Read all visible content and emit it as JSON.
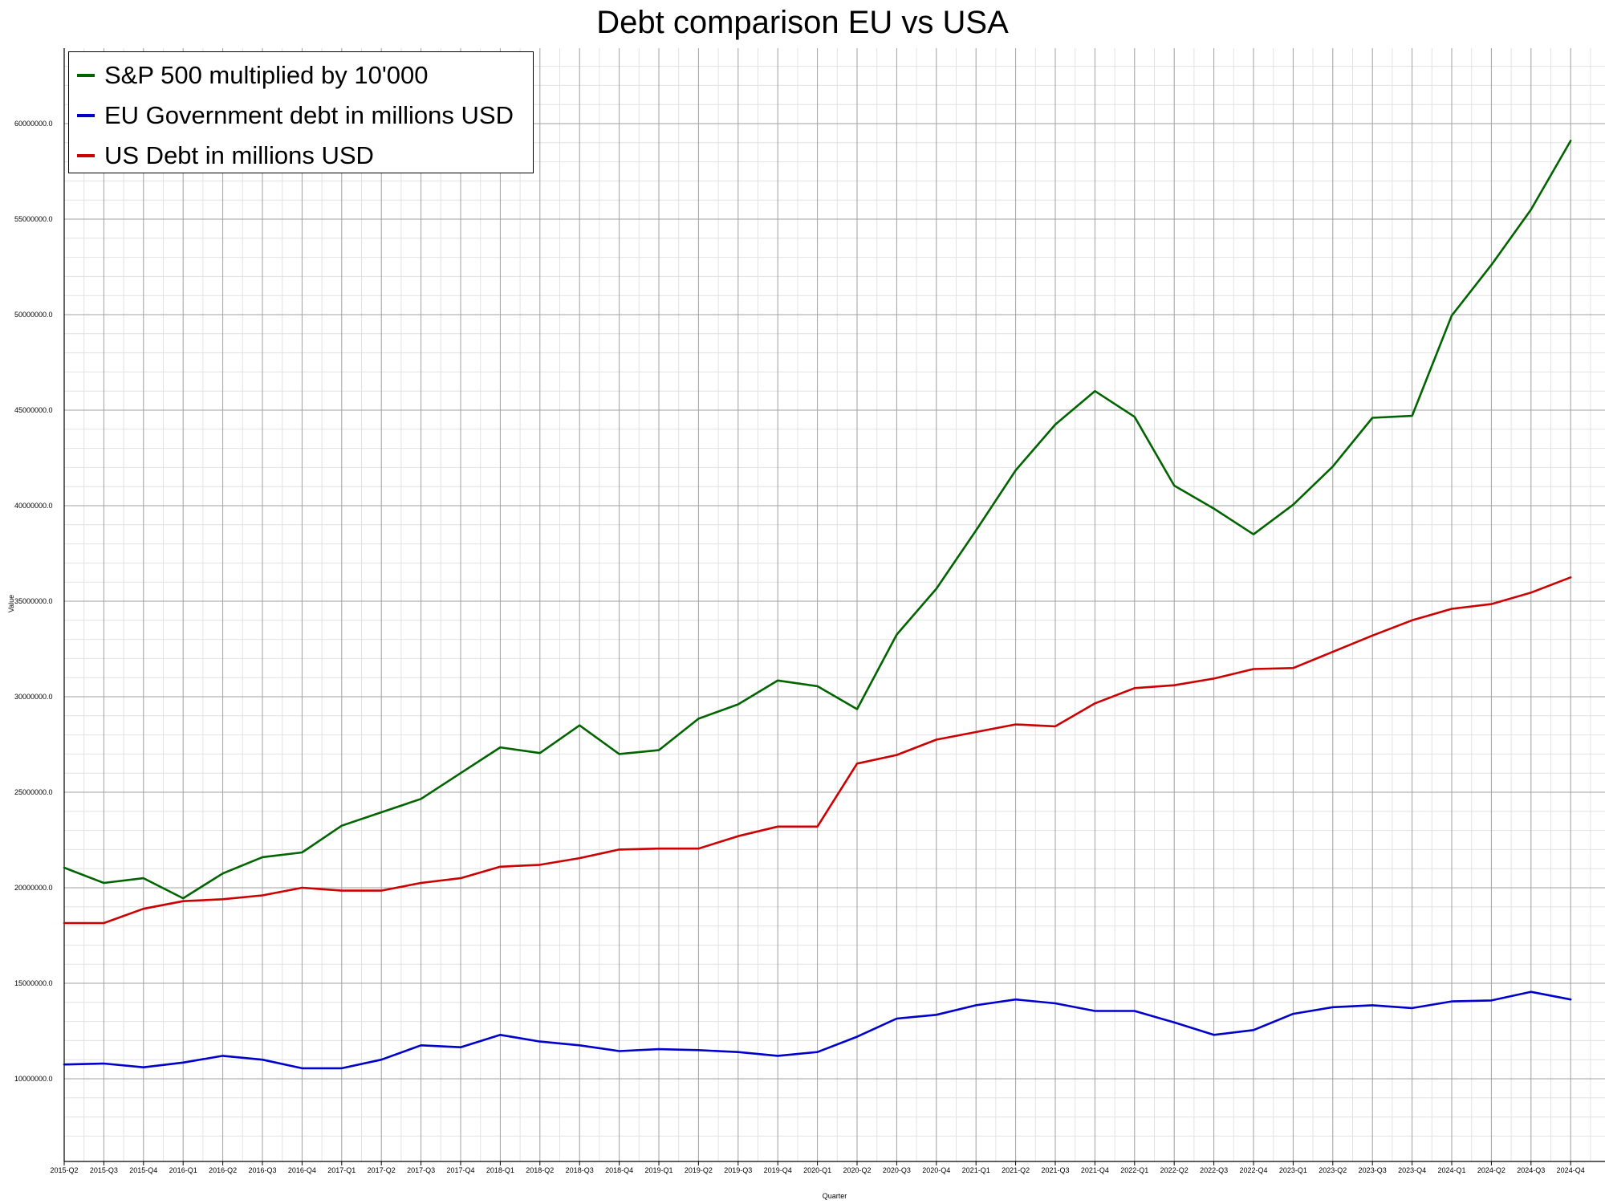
{
  "chart_data": {
    "type": "line",
    "title": "Debt comparison EU vs USA",
    "xlabel": "Quarter",
    "ylabel": "Value",
    "ylim": [
      82000000,
      63500000
    ],
    "grid": true,
    "legend_position": "top-left",
    "categories": [
      "2015-Q2",
      "2015-Q3",
      "2015-Q4",
      "2016-Q1",
      "2016-Q2",
      "2016-Q3",
      "2016-Q4",
      "2017-Q1",
      "2017-Q2",
      "2017-Q3",
      "2017-Q4",
      "2018-Q1",
      "2018-Q2",
      "2018-Q3",
      "2018-Q4",
      "2019-Q1",
      "2019-Q2",
      "2019-Q3",
      "2019-Q4",
      "2020-Q1",
      "2020-Q2",
      "2020-Q3",
      "2020-Q4",
      "2021-Q1",
      "2021-Q2",
      "2021-Q3",
      "2021-Q4",
      "2022-Q1",
      "2022-Q2",
      "2022-Q3",
      "2022-Q4",
      "2023-Q1",
      "2023-Q2",
      "2023-Q3",
      "2023-Q4",
      "2024-Q1",
      "2024-Q2",
      "2024-Q3",
      "2024-Q4"
    ],
    "y_ticks": [
      "10000000.0",
      "15000000.0",
      "20000000.0",
      "25000000.0",
      "30000000.0",
      "35000000.0",
      "40000000.0",
      "45000000.0",
      "50000000.0",
      "55000000.0",
      "60000000.0"
    ],
    "y_tick_values": [
      10000000,
      15000000,
      20000000,
      25000000,
      30000000,
      35000000,
      40000000,
      45000000,
      50000000,
      55000000,
      60000000
    ],
    "series": [
      {
        "name": "S&P 500 multiplied by 10'000",
        "color": "#006400",
        "values": [
          21050000,
          20250000,
          20500000,
          19450000,
          20750000,
          21600000,
          21850000,
          23250000,
          23950000,
          24650000,
          26000000,
          27350000,
          27050000,
          28500000,
          27000000,
          27200000,
          28850000,
          29600000,
          30850000,
          30550000,
          29350000,
          33250000,
          35650000,
          38700000,
          41850000,
          44250000,
          46000000,
          44650000,
          41050000,
          39850000,
          38500000,
          40050000,
          42050000,
          44600000,
          44700000,
          49950000,
          52600000,
          55500000,
          59100000
        ]
      },
      {
        "name": "EU Government debt in millions USD",
        "color": "#0000cc",
        "values": [
          10750000,
          10800000,
          10600000,
          10850000,
          11200000,
          11000000,
          10550000,
          10550000,
          11000000,
          11750000,
          11650000,
          12300000,
          11950000,
          11750000,
          11450000,
          11550000,
          11500000,
          11400000,
          11200000,
          11400000,
          12200000,
          13150000,
          13350000,
          13850000,
          14150000,
          13950000,
          13550000,
          13550000,
          12950000,
          12300000,
          12550000,
          13400000,
          13750000,
          13850000,
          13700000,
          14050000,
          14100000,
          14550000,
          14150000
        ]
      },
      {
        "name": "US Debt in millions USD",
        "color": "#cc0000",
        "values": [
          18150000,
          18150000,
          18900000,
          19300000,
          19400000,
          19600000,
          20000000,
          19850000,
          19850000,
          20250000,
          20500000,
          21100000,
          21200000,
          21550000,
          22000000,
          22050000,
          22050000,
          22700000,
          23200000,
          23200000,
          26500000,
          26950000,
          27750000,
          28150000,
          28550000,
          28450000,
          29650000,
          30450000,
          30600000,
          30950000,
          31450000,
          31500000,
          32350000,
          33200000,
          34000000,
          34600000,
          34850000,
          35450000,
          36250000
        ]
      }
    ]
  }
}
